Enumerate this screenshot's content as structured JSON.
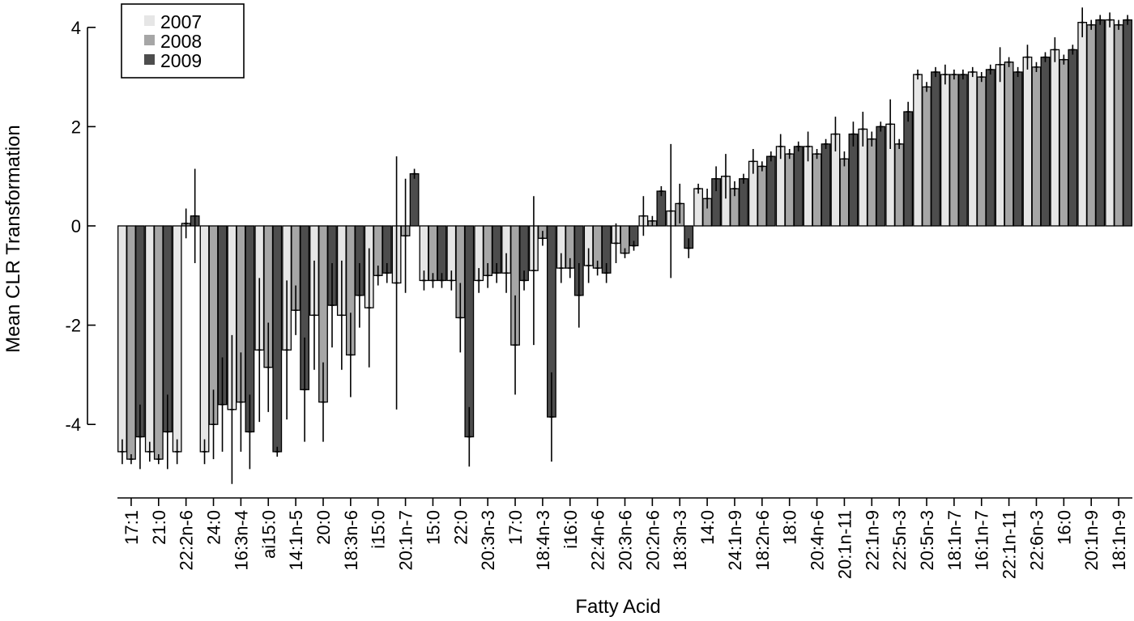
{
  "chart_data": {
    "type": "bar",
    "xlabel": "Fatty Acid",
    "ylabel": "Mean CLR Transformation",
    "ylim": [
      -5.4,
      4.6
    ],
    "yticks": [
      -4,
      -2,
      0,
      2,
      4
    ],
    "ytick_labels": [
      "-4",
      "-2",
      "0",
      "2",
      "4"
    ],
    "error_bars": true,
    "legend_position": "top-left",
    "categories": [
      "17:1",
      "21:0",
      "22:2n-6",
      "24:0",
      "16:3n-4",
      "ai15:0",
      "14:1n-5",
      "20:0",
      "18:3n-6",
      "i15:0",
      "20:1n-7",
      "15:0",
      "22:0",
      "20:3n-3",
      "17:0",
      "18:4n-3",
      "i16:0",
      "22:4n-6",
      "20:3n-6",
      "20:2n-6",
      "18:3n-3",
      "14:0",
      "24:1n-9",
      "18:2n-6",
      "18:0",
      "20:4n-6",
      "20:1n-11",
      "22:1n-9",
      "22:5n-3",
      "20:5n-3",
      "18:1n-7",
      "16:1n-7",
      "22:1n-11",
      "22:6n-3",
      "16:0",
      "20:1n-9",
      "18:1n-9"
    ],
    "series": [
      {
        "name": "2007",
        "color": "#e6e6e6",
        "values": [
          -4.55,
          -4.55,
          -4.55,
          -4.55,
          -3.7,
          -2.5,
          -2.5,
          -1.8,
          -1.8,
          -1.65,
          -1.15,
          -1.1,
          -1.1,
          -1.1,
          -0.95,
          -0.9,
          -0.85,
          -0.8,
          -0.35,
          0.2,
          0.3,
          0.75,
          1.0,
          1.3,
          1.6,
          1.6,
          1.85,
          1.95,
          2.05,
          3.05,
          3.05,
          3.1,
          3.25,
          3.4,
          3.55,
          4.1,
          4.15
        ],
        "errors": [
          0.25,
          0.2,
          0.25,
          0.25,
          1.5,
          1.45,
          1.4,
          1.1,
          1.1,
          1.2,
          2.55,
          0.2,
          0.2,
          0.25,
          0.4,
          1.5,
          0.3,
          0.35,
          0.4,
          0.4,
          1.35,
          0.1,
          0.45,
          0.25,
          0.25,
          0.3,
          0.35,
          0.35,
          0.5,
          0.1,
          0.2,
          0.1,
          0.35,
          0.25,
          0.25,
          0.3,
          0.15
        ]
      },
      {
        "name": "2008",
        "color": "#a6a6a6",
        "values": [
          -4.7,
          -4.7,
          0.05,
          -4.0,
          -3.55,
          -2.85,
          -1.7,
          -3.55,
          -2.6,
          -1.0,
          -0.2,
          -1.1,
          -1.85,
          -1.0,
          -2.4,
          -0.25,
          -0.85,
          -0.85,
          -0.55,
          0.1,
          0.45,
          0.55,
          0.75,
          1.2,
          1.45,
          1.45,
          1.35,
          1.75,
          1.65,
          2.8,
          3.05,
          3.0,
          3.3,
          3.2,
          3.35,
          4.05,
          4.05
        ],
        "errors": [
          0.1,
          0.1,
          0.3,
          0.7,
          1.0,
          0.9,
          0.5,
          0.8,
          0.85,
          0.2,
          1.15,
          0.15,
          0.7,
          0.25,
          1.0,
          0.15,
          0.2,
          0.15,
          0.1,
          0.1,
          0.4,
          0.2,
          0.15,
          0.1,
          0.1,
          0.1,
          0.15,
          0.15,
          0.1,
          0.1,
          0.1,
          0.1,
          0.1,
          0.1,
          0.1,
          0.1,
          0.1
        ]
      },
      {
        "name": "2009",
        "color": "#4d4d4d",
        "values": [
          -4.25,
          -4.15,
          0.2,
          -3.6,
          -4.15,
          -4.55,
          -3.3,
          -1.6,
          -1.4,
          -0.95,
          1.05,
          -1.1,
          -4.25,
          -0.95,
          -1.1,
          -3.85,
          -1.4,
          -0.95,
          -0.4,
          0.7,
          -0.45,
          0.95,
          0.95,
          1.4,
          1.6,
          1.65,
          1.85,
          2.0,
          2.3,
          3.1,
          3.05,
          3.15,
          3.1,
          3.4,
          3.55,
          4.15,
          4.15
        ],
        "errors": [
          0.65,
          0.75,
          0.95,
          0.95,
          0.75,
          0.1,
          1.05,
          0.85,
          0.65,
          0.2,
          0.1,
          0.15,
          0.6,
          0.2,
          0.2,
          0.9,
          0.65,
          0.2,
          0.1,
          0.1,
          0.2,
          0.25,
          0.1,
          0.1,
          0.1,
          0.1,
          0.25,
          0.1,
          0.2,
          0.1,
          0.1,
          0.1,
          0.1,
          0.1,
          0.1,
          0.1,
          0.1
        ]
      }
    ]
  }
}
